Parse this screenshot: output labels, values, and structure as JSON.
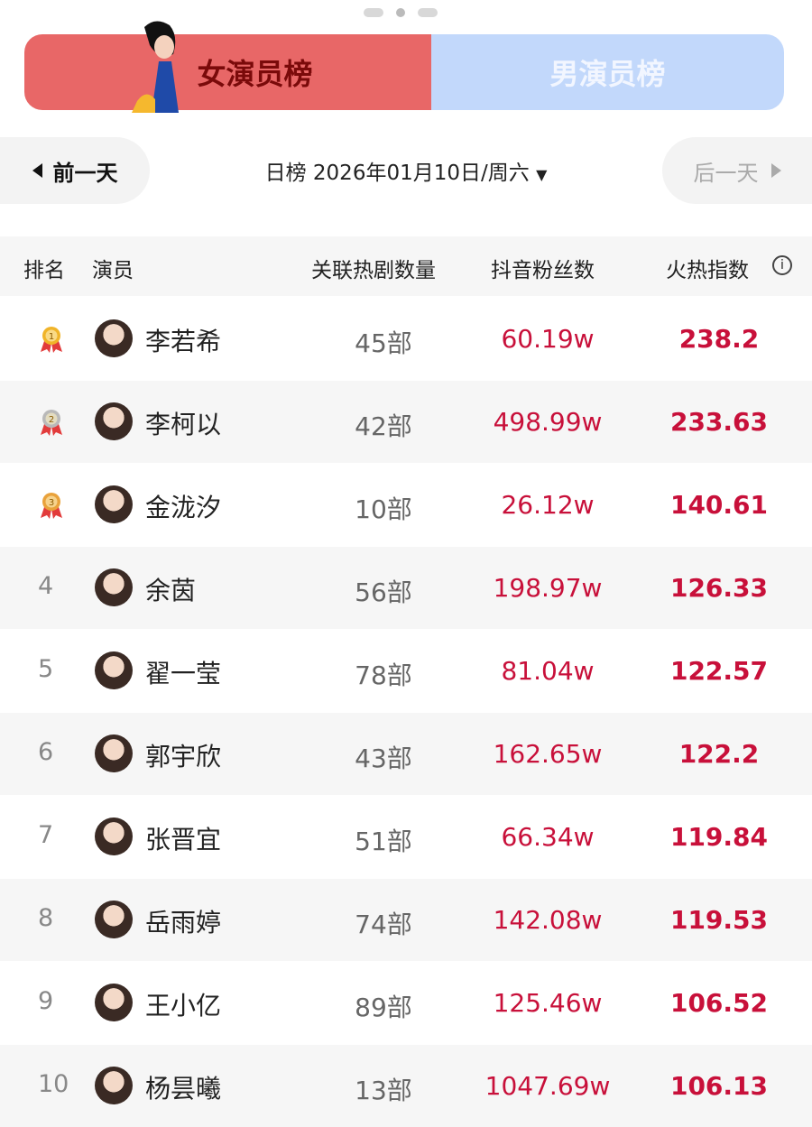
{
  "tabs": {
    "female": "女演员榜",
    "male": "男演员榜"
  },
  "date_nav": {
    "prev": "前一天",
    "date": "日榜 2026年01月10日/周六",
    "next": "后一天"
  },
  "table": {
    "headers": {
      "rank": "排名",
      "actor": "演员",
      "dramas": "关联热剧数量",
      "fans": "抖音粉丝数",
      "heat": "火热指数"
    },
    "rows": [
      {
        "rank": "1",
        "name": "李若希",
        "dramas": "45部",
        "fans": "60.19w",
        "heat": "238.2"
      },
      {
        "rank": "2",
        "name": "李柯以",
        "dramas": "42部",
        "fans": "498.99w",
        "heat": "233.63"
      },
      {
        "rank": "3",
        "name": "金泷汐",
        "dramas": "10部",
        "fans": "26.12w",
        "heat": "140.61"
      },
      {
        "rank": "4",
        "name": "余茵",
        "dramas": "56部",
        "fans": "198.97w",
        "heat": "126.33"
      },
      {
        "rank": "5",
        "name": "翟一莹",
        "dramas": "78部",
        "fans": "81.04w",
        "heat": "122.57"
      },
      {
        "rank": "6",
        "name": "郭宇欣",
        "dramas": "43部",
        "fans": "162.65w",
        "heat": "122.2"
      },
      {
        "rank": "7",
        "name": "张晋宜",
        "dramas": "51部",
        "fans": "66.34w",
        "heat": "119.84"
      },
      {
        "rank": "8",
        "name": "岳雨婷",
        "dramas": "74部",
        "fans": "142.08w",
        "heat": "119.53"
      },
      {
        "rank": "9",
        "name": "王小亿",
        "dramas": "89部",
        "fans": "125.46w",
        "heat": "106.52"
      },
      {
        "rank": "10",
        "name": "杨昙曦",
        "dramas": "13部",
        "fans": "1047.69w",
        "heat": "106.13"
      }
    ]
  },
  "colors": {
    "female_tab": "#e86767",
    "male_tab": "#c2d8fb",
    "value_red": "#c8103a"
  }
}
